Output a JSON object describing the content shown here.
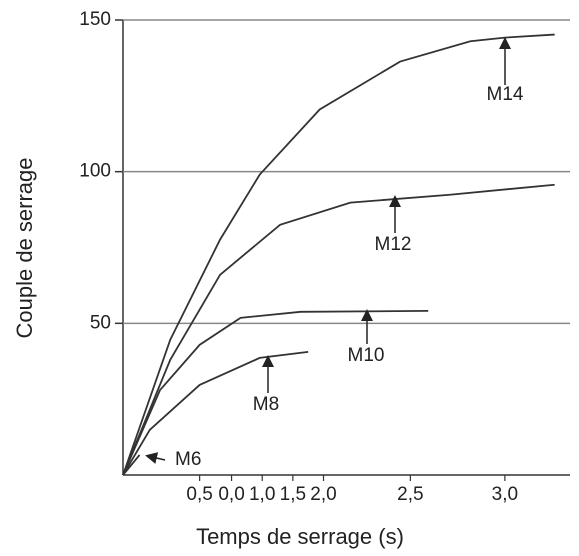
{
  "chart_data": {
    "type": "line",
    "x_label": "Temps de serrage (s)",
    "y_label": "Couple de serrage",
    "xlim": [
      0,
      3.5
    ],
    "ylim": [
      0,
      150
    ],
    "xticks": [
      {
        "value": 0.6,
        "label": "0,5"
      },
      {
        "value": 0.85,
        "label": "0,0"
      },
      {
        "value": 1.09,
        "label": "1,0"
      },
      {
        "value": 1.33,
        "label": "1,5"
      },
      {
        "value": 1.57,
        "label": "2,0"
      },
      {
        "value": 2.25,
        "label": "2,5"
      },
      {
        "value": 2.99,
        "label": "3,0"
      }
    ],
    "yticks": [
      50,
      100,
      150
    ],
    "grid": true,
    "series": [
      {
        "name": "M14",
        "color": "#333333",
        "x": [
          0,
          0.37,
          0.76,
          1.07,
          1.54,
          2.17,
          2.72,
          2.99,
          3.38
        ],
        "values": [
          0,
          44.6,
          77.6,
          99,
          120.5,
          136.3,
          143,
          144.2,
          145.2
        ]
      },
      {
        "name": "M12",
        "color": "#333333",
        "x": [
          0,
          0.37,
          0.76,
          1.23,
          1.78,
          2.56,
          3.38
        ],
        "values": [
          0,
          38,
          66,
          82.5,
          89.8,
          92.4,
          95.7
        ]
      },
      {
        "name": "M10",
        "color": "#333333",
        "x": [
          0,
          0.29,
          0.6,
          0.92,
          1.39,
          2.39
        ],
        "values": [
          0,
          28,
          42.9,
          51.8,
          53.8,
          54.1
        ]
      },
      {
        "name": "M8",
        "color": "#333333",
        "x": [
          0,
          0.21,
          0.6,
          1.07,
          1.45
        ],
        "values": [
          0,
          14.9,
          29.7,
          38.6,
          40.6
        ]
      },
      {
        "name": "M6",
        "color": "#333333",
        "x": [
          0,
          0.13
        ],
        "values": [
          0,
          6.6
        ]
      }
    ]
  }
}
